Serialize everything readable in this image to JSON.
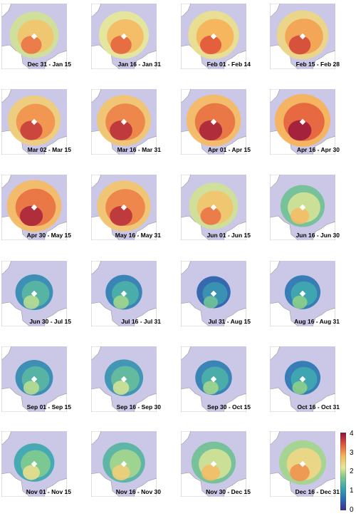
{
  "panels": [
    {
      "label": "Dec 31 - Jan 15",
      "level": 2.6
    },
    {
      "label": "Jan 16 - Jan 31",
      "level": 2.7
    },
    {
      "label": "Feb 01 - Feb 14",
      "level": 2.8
    },
    {
      "label": "Feb 15 - Feb 28",
      "level": 2.9
    },
    {
      "label": "Mar 02 - Mar 15",
      "level": 3.0
    },
    {
      "label": "Mar 16 - Mar 31",
      "level": 3.1
    },
    {
      "label": "Apr 01 - Apr 15",
      "level": 3.2
    },
    {
      "label": "Apr 16 - Apr 30",
      "level": 3.3
    },
    {
      "label": "Apr 30 - May 15",
      "level": 3.2
    },
    {
      "label": "May 16 - May 31",
      "level": 3.1
    },
    {
      "label": "Jun 01 - Jun 15",
      "level": 2.6
    },
    {
      "label": "Jun 16 - Jun 30",
      "level": 2.1
    },
    {
      "label": "Jun 30 - Jul 15",
      "level": 1.4
    },
    {
      "label": "Jul 16 - Jul 31",
      "level": 1.3
    },
    {
      "label": "Jul 31 - Aug 15",
      "level": 1.0
    },
    {
      "label": "Aug 16 - Aug 31",
      "level": 1.2
    },
    {
      "label": "Sep 01 - Sep 15",
      "level": 1.4
    },
    {
      "label": "Sep 16 - Sep 30",
      "level": 1.5
    },
    {
      "label": "Sep 30 - Oct 15",
      "level": 1.3
    },
    {
      "label": "Oct 16 - Oct 31",
      "level": 1.2
    },
    {
      "label": "Nov 01 - Nov 15",
      "level": 1.7
    },
    {
      "label": "Nov 16 - Nov 30",
      "level": 1.9
    },
    {
      "label": "Nov 30 - Dec 15",
      "level": 2.1
    },
    {
      "label": "Dec 16 - Dec 31",
      "level": 2.4
    }
  ],
  "colorbar": {
    "min": 0,
    "max": 4,
    "ticks": [
      "4",
      "3",
      "2",
      "1",
      "0"
    ]
  },
  "colors": {
    "ocean": "#cbc7e6",
    "land": "#ffffff",
    "coastline": "#999999",
    "pole_marker": "#ffffff"
  }
}
